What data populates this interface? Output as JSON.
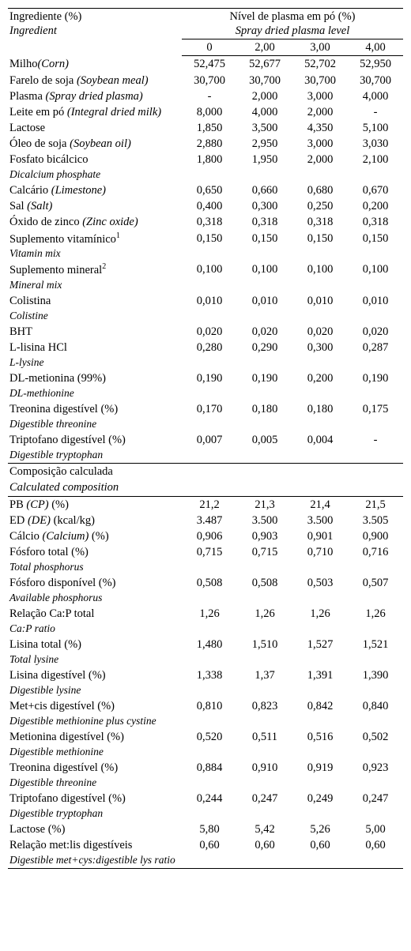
{
  "header": {
    "ingredient_pt": "Ingrediente (%)",
    "ingredient_en": "Ingredient",
    "level_pt": "Nível de plasma em pó (%)",
    "level_en": "Spray dried plasma level",
    "cols": [
      "0",
      "2,00",
      "3,00",
      "4,00"
    ]
  },
  "section1": [
    {
      "pt": "Milho",
      "en": "(Corn)",
      "v": [
        "52,475",
        "52,677",
        "52,702",
        "52,950"
      ]
    },
    {
      "pt": "Farelo de soja ",
      "en": "(Soybean meal)",
      "v": [
        "30,700",
        "30,700",
        "30,700",
        "30,700"
      ]
    },
    {
      "pt": "Plasma ",
      "en": "(Spray dried plasma)",
      "v": [
        "-",
        "2,000",
        "3,000",
        "4,000"
      ]
    },
    {
      "pt": "Leite em pó ",
      "en": "(Integral dried milk)",
      "v": [
        "8,000",
        "4,000",
        "2,000",
        "-"
      ]
    },
    {
      "pt": "Lactose",
      "en": "",
      "v": [
        "1,850",
        "3,500",
        "4,350",
        "5,100"
      ]
    },
    {
      "pt": "Óleo de soja ",
      "en": "(Soybean oil)",
      "v": [
        "2,880",
        "2,950",
        "3,000",
        "3,030"
      ]
    },
    {
      "pt": "Fosfato bicálcico",
      "en": "",
      "sub": "Dicalcium phosphate",
      "v": [
        "1,800",
        "1,950",
        "2,000",
        "2,100"
      ]
    },
    {
      "pt": "Calcário ",
      "en": "(Limestone)",
      "v": [
        "0,650",
        "0,660",
        "0,680",
        "0,670"
      ]
    },
    {
      "pt": "Sal ",
      "en": "(Salt)",
      "v": [
        "0,400",
        "0,300",
        "0,250",
        "0,200"
      ]
    },
    {
      "pt": "Óxido de zinco ",
      "en": "(Zinc oxide)",
      "v": [
        "0,318",
        "0,318",
        "0,318",
        "0,318"
      ]
    },
    {
      "pt": "Suplemento vitamínico",
      "sup": "1",
      "en": "",
      "sub": "Vitamin mix",
      "v": [
        "0,150",
        "0,150",
        "0,150",
        "0,150"
      ]
    },
    {
      "pt": "Suplemento mineral",
      "sup": "2",
      "en": "",
      "sub": "Mineral mix",
      "v": [
        "0,100",
        "0,100",
        "0,100",
        "0,100"
      ]
    },
    {
      "pt": "Colistina",
      "en": "",
      "sub": "Colistine",
      "v": [
        "0,010",
        "0,010",
        "0,010",
        "0,010"
      ]
    },
    {
      "pt": "BHT",
      "en": "",
      "v": [
        "0,020",
        "0,020",
        "0,020",
        "0,020"
      ]
    },
    {
      "pt": "L-lisina HCl",
      "en": "",
      "sub": "L-lysine",
      "v": [
        "0,280",
        "0,290",
        "0,300",
        "0,287"
      ]
    },
    {
      "pt": "DL-metionina (99%)",
      "en": "",
      "sub": "DL-methionine",
      "v": [
        "0,190",
        "0,190",
        "0,200",
        "0,190"
      ]
    },
    {
      "pt": "Treonina digestível (%)",
      "en": "",
      "sub": "Digestible threonine",
      "v": [
        "0,170",
        "0,180",
        "0,180",
        "0,175"
      ]
    },
    {
      "pt": "Triptofano digestível (%)",
      "en": "",
      "sub": "Digestible tryptophan",
      "v": [
        "0,007",
        "0,005",
        "0,004",
        "-"
      ]
    }
  ],
  "section2_title_pt": "Composição calculada",
  "section2_title_en": "Calculated composition",
  "section2": [
    {
      "pt": "PB ",
      "en": "(CP)",
      "suffix": " (%)",
      "v": [
        "21,2",
        "21,3",
        "21,4",
        "21,5"
      ]
    },
    {
      "pt": "ED ",
      "en": "(DE)",
      "suffix": " (kcal/kg)",
      "v": [
        "3.487",
        "3.500",
        "3.500",
        "3.505"
      ]
    },
    {
      "pt": "Cálcio ",
      "en": "(Calcium)",
      "suffix": " (%)",
      "v": [
        "0,906",
        "0,903",
        "0,901",
        "0,900"
      ]
    },
    {
      "pt": "Fósforo total (%)",
      "en": "",
      "sub": "Total phosphorus",
      "v": [
        "0,715",
        "0,715",
        "0,710",
        "0,716"
      ]
    },
    {
      "pt": "Fósforo disponível (%)",
      "en": "",
      "sub": "Available phosphorus",
      "v": [
        "0,508",
        "0,508",
        "0,503",
        "0,507"
      ]
    },
    {
      "pt": "Relação Ca:P total",
      "en": "",
      "sub": "Ca:P ratio",
      "v": [
        "1,26",
        "1,26",
        "1,26",
        "1,26"
      ]
    },
    {
      "pt": "Lisina total (%)",
      "en": "",
      "sub": "Total lysine",
      "v": [
        "1,480",
        "1,510",
        "1,527",
        "1,521"
      ]
    },
    {
      "pt": "Lisina digestível (%)",
      "en": "",
      "sub": "Digestible lysine",
      "v": [
        "1,338",
        "1,37",
        "1,391",
        "1,390"
      ]
    },
    {
      "pt": "Met+cis digestível (%)",
      "en": "",
      "sub": "Digestible methionine plus cystine",
      "v": [
        "0,810",
        "0,823",
        "0,842",
        "0,840"
      ]
    },
    {
      "pt": "Metionina digestível (%)",
      "en": "",
      "sub": "Digestible methionine",
      "v": [
        "0,520",
        "0,511",
        "0,516",
        "0,502"
      ]
    },
    {
      "pt": "Treonina digestível (%)",
      "en": "",
      "sub": "Digestible threonine",
      "v": [
        "0,884",
        "0,910",
        "0,919",
        "0,923"
      ]
    },
    {
      "pt": "Triptofano digestível (%)",
      "en": "",
      "sub": "Digestible tryptophan",
      "v": [
        "0,244",
        "0,247",
        "0,249",
        "0,247"
      ]
    },
    {
      "pt": "Lactose (%)",
      "en": "",
      "v": [
        "5,80",
        "5,42",
        "5,26",
        "5,00"
      ]
    },
    {
      "pt": "Relação met:lis digestíveis",
      "en": "",
      "sub": "Digestible met+cys:digestible lys ratio",
      "v": [
        "0,60",
        "0,60",
        "0,60",
        "0,60"
      ]
    }
  ]
}
